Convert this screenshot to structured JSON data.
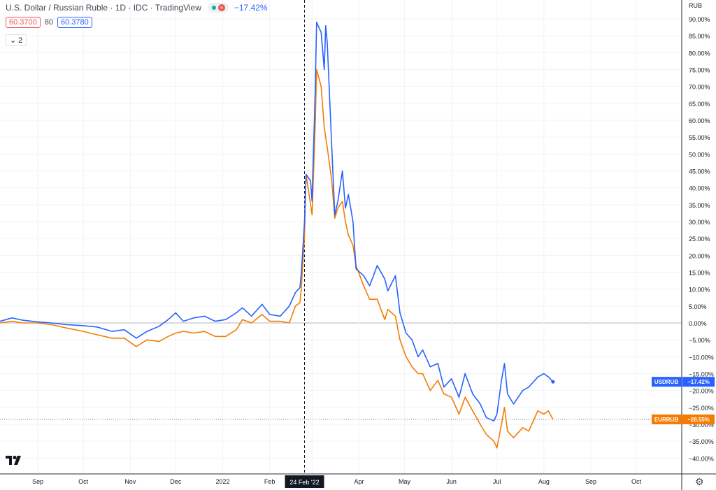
{
  "header": {
    "title": "U.S. Dollar / Russian Ruble · 1D · IDC · TradingView",
    "change_display": "−17.42%",
    "bid": "60.3700",
    "spread": "80",
    "ask": "60.3780",
    "collapse_count": "2",
    "bid_color": "#ef5350",
    "ask_color": "#2962ff"
  },
  "icons": {
    "logo": "tradingview-logo-icon",
    "settings": "gear-icon",
    "chevron": "chevron-down-icon"
  },
  "chart_data": {
    "type": "line",
    "title": "U.S. Dollar / Russian Ruble · 1D · IDC · TradingView",
    "ylabel": "",
    "y_unit": "RUB",
    "ylim": [
      -43,
      92
    ],
    "y_ticks": [
      90,
      85,
      80,
      75,
      70,
      65,
      60,
      55,
      50,
      45,
      40,
      35,
      30,
      25,
      20,
      15,
      10,
      5,
      0,
      -5,
      -10,
      -15,
      -20,
      -25,
      -30,
      -35,
      -40
    ],
    "x_ticks": [
      "Sep",
      "Oct",
      "Nov",
      "Dec",
      "2022",
      "Feb",
      "Mar",
      "Apr",
      "May",
      "Jun",
      "Jul",
      "Aug",
      "Sep",
      "Oct"
    ],
    "x_start": "2021-08-07",
    "x_end": "2022-10-31",
    "crosshair": {
      "date": "2022-02-24",
      "label": "24 Feb '22"
    },
    "grid": true,
    "series": [
      {
        "name": "USDRUB",
        "color": "#2962ff",
        "last_label": "−17.42%",
        "points": [
          [
            "2021-08-07",
            0.5
          ],
          [
            "2021-08-15",
            1.5
          ],
          [
            "2021-08-22",
            0.8
          ],
          [
            "2021-09-01",
            0.3
          ],
          [
            "2021-09-10",
            0.0
          ],
          [
            "2021-09-20",
            -0.5
          ],
          [
            "2021-10-01",
            -0.8
          ],
          [
            "2021-10-10",
            -1.2
          ],
          [
            "2021-10-20",
            -2.5
          ],
          [
            "2021-10-28",
            -2.0
          ],
          [
            "2021-11-05",
            -4.5
          ],
          [
            "2021-11-12",
            -2.5
          ],
          [
            "2021-11-20",
            -1.0
          ],
          [
            "2021-11-26",
            1.0
          ],
          [
            "2021-12-01",
            3.0
          ],
          [
            "2021-12-06",
            0.5
          ],
          [
            "2021-12-13",
            1.5
          ],
          [
            "2021-12-20",
            2.0
          ],
          [
            "2021-12-27",
            0.5
          ],
          [
            "2022-01-03",
            1.0
          ],
          [
            "2022-01-10",
            3.0
          ],
          [
            "2022-01-14",
            4.5
          ],
          [
            "2022-01-20",
            2.0
          ],
          [
            "2022-01-27",
            5.5
          ],
          [
            "2022-02-01",
            2.5
          ],
          [
            "2022-02-08",
            2.0
          ],
          [
            "2022-02-14",
            5.0
          ],
          [
            "2022-02-18",
            9.0
          ],
          [
            "2022-02-21",
            10.5
          ],
          [
            "2022-02-22",
            15.5
          ],
          [
            "2022-02-24",
            30.0
          ],
          [
            "2022-02-25",
            44.0
          ],
          [
            "2022-02-28",
            42.0
          ],
          [
            "2022-03-01",
            36.0
          ],
          [
            "2022-03-03",
            68.0
          ],
          [
            "2022-03-04",
            89.0
          ],
          [
            "2022-03-07",
            86.0
          ],
          [
            "2022-03-09",
            75.0
          ],
          [
            "2022-03-10",
            88.0
          ],
          [
            "2022-03-11",
            83.0
          ],
          [
            "2022-03-14",
            52.0
          ],
          [
            "2022-03-16",
            32.0
          ],
          [
            "2022-03-18",
            36.0
          ],
          [
            "2022-03-21",
            45.0
          ],
          [
            "2022-03-23",
            34.0
          ],
          [
            "2022-03-25",
            38.0
          ],
          [
            "2022-03-28",
            30.0
          ],
          [
            "2022-03-30",
            16.0
          ],
          [
            "2022-04-04",
            14.0
          ],
          [
            "2022-04-08",
            11.0
          ],
          [
            "2022-04-13",
            17.0
          ],
          [
            "2022-04-18",
            13.0
          ],
          [
            "2022-04-20",
            9.5
          ],
          [
            "2022-04-25",
            14.0
          ],
          [
            "2022-04-28",
            3.0
          ],
          [
            "2022-05-02",
            -3.0
          ],
          [
            "2022-05-06",
            -5.0
          ],
          [
            "2022-05-10",
            -10.0
          ],
          [
            "2022-05-13",
            -8.0
          ],
          [
            "2022-05-18",
            -13.0
          ],
          [
            "2022-05-23",
            -12.0
          ],
          [
            "2022-05-27",
            -19.0
          ],
          [
            "2022-06-01",
            -16.5
          ],
          [
            "2022-06-06",
            -22.0
          ],
          [
            "2022-06-10",
            -15.0
          ],
          [
            "2022-06-15",
            -21.0
          ],
          [
            "2022-06-20",
            -24.0
          ],
          [
            "2022-06-24",
            -28.0
          ],
          [
            "2022-06-29",
            -29.0
          ],
          [
            "2022-07-01",
            -27.0
          ],
          [
            "2022-07-04",
            -17.0
          ],
          [
            "2022-07-06",
            -12.0
          ],
          [
            "2022-07-08",
            -21.0
          ],
          [
            "2022-07-12",
            -24.0
          ],
          [
            "2022-07-18",
            -20.0
          ],
          [
            "2022-07-22",
            -19.0
          ],
          [
            "2022-07-28",
            -16.0
          ],
          [
            "2022-08-01",
            -15.0
          ],
          [
            "2022-08-04",
            -16.0
          ],
          [
            "2022-08-07",
            -17.42
          ]
        ]
      },
      {
        "name": "EURRUB",
        "color": "#f57c00",
        "last_label": "−28.55%",
        "points": [
          [
            "2021-08-07",
            0.0
          ],
          [
            "2021-08-15",
            0.5
          ],
          [
            "2021-08-22",
            0.0
          ],
          [
            "2021-09-01",
            0.0
          ],
          [
            "2021-09-10",
            -0.5
          ],
          [
            "2021-09-20",
            -1.5
          ],
          [
            "2021-10-01",
            -2.5
          ],
          [
            "2021-10-10",
            -3.5
          ],
          [
            "2021-10-20",
            -4.5
          ],
          [
            "2021-10-28",
            -4.5
          ],
          [
            "2021-11-05",
            -7.0
          ],
          [
            "2021-11-12",
            -5.0
          ],
          [
            "2021-11-20",
            -5.5
          ],
          [
            "2021-11-26",
            -4.0
          ],
          [
            "2021-12-01",
            -3.0
          ],
          [
            "2021-12-06",
            -2.5
          ],
          [
            "2021-12-13",
            -3.0
          ],
          [
            "2021-12-20",
            -2.5
          ],
          [
            "2021-12-27",
            -4.0
          ],
          [
            "2022-01-03",
            -4.0
          ],
          [
            "2022-01-10",
            -2.0
          ],
          [
            "2022-01-14",
            1.0
          ],
          [
            "2022-01-20",
            0.0
          ],
          [
            "2022-01-27",
            2.5
          ],
          [
            "2022-02-01",
            0.5
          ],
          [
            "2022-02-08",
            0.5
          ],
          [
            "2022-02-14",
            0.0
          ],
          [
            "2022-02-18",
            5.0
          ],
          [
            "2022-02-21",
            6.0
          ],
          [
            "2022-02-22",
            11.0
          ],
          [
            "2022-02-24",
            26.0
          ],
          [
            "2022-02-25",
            44.0
          ],
          [
            "2022-02-28",
            35.0
          ],
          [
            "2022-03-01",
            32.0
          ],
          [
            "2022-03-03",
            58.0
          ],
          [
            "2022-03-04",
            75.0
          ],
          [
            "2022-03-07",
            70.0
          ],
          [
            "2022-03-09",
            58.0
          ],
          [
            "2022-03-10",
            55.0
          ],
          [
            "2022-03-11",
            52.0
          ],
          [
            "2022-03-14",
            42.0
          ],
          [
            "2022-03-16",
            31.0
          ],
          [
            "2022-03-18",
            34.0
          ],
          [
            "2022-03-21",
            36.0
          ],
          [
            "2022-03-23",
            30.0
          ],
          [
            "2022-03-25",
            26.0
          ],
          [
            "2022-03-28",
            23.0
          ],
          [
            "2022-03-30",
            17.0
          ],
          [
            "2022-04-04",
            11.0
          ],
          [
            "2022-04-08",
            7.0
          ],
          [
            "2022-04-13",
            7.0
          ],
          [
            "2022-04-18",
            1.0
          ],
          [
            "2022-04-20",
            4.0
          ],
          [
            "2022-04-25",
            2.0
          ],
          [
            "2022-04-28",
            -5.0
          ],
          [
            "2022-05-02",
            -10.0
          ],
          [
            "2022-05-06",
            -13.0
          ],
          [
            "2022-05-10",
            -15.0
          ],
          [
            "2022-05-13",
            -15.0
          ],
          [
            "2022-05-18",
            -20.0
          ],
          [
            "2022-05-23",
            -17.0
          ],
          [
            "2022-05-27",
            -21.0
          ],
          [
            "2022-06-01",
            -22.0
          ],
          [
            "2022-06-06",
            -27.0
          ],
          [
            "2022-06-10",
            -22.0
          ],
          [
            "2022-06-15",
            -26.0
          ],
          [
            "2022-06-20",
            -30.0
          ],
          [
            "2022-06-24",
            -33.0
          ],
          [
            "2022-06-29",
            -35.0
          ],
          [
            "2022-07-01",
            -37.0
          ],
          [
            "2022-07-04",
            -30.0
          ],
          [
            "2022-07-06",
            -25.0
          ],
          [
            "2022-07-08",
            -32.0
          ],
          [
            "2022-07-12",
            -34.0
          ],
          [
            "2022-07-18",
            -31.0
          ],
          [
            "2022-07-22",
            -32.0
          ],
          [
            "2022-07-28",
            -26.0
          ],
          [
            "2022-08-01",
            -27.0
          ],
          [
            "2022-08-04",
            -26.0
          ],
          [
            "2022-08-07",
            -28.55
          ]
        ]
      }
    ]
  }
}
